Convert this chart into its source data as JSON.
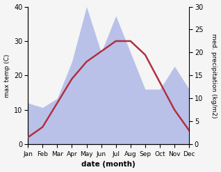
{
  "months": [
    "Jan",
    "Feb",
    "Mar",
    "Apr",
    "May",
    "Jun",
    "Jul",
    "Aug",
    "Sep",
    "Oct",
    "Nov",
    "Dec"
  ],
  "temperature": [
    2,
    5,
    12,
    19,
    24,
    27,
    30,
    30,
    26,
    18,
    10,
    4
  ],
  "precipitation": [
    9,
    8,
    10,
    18,
    30,
    20,
    28,
    20,
    12,
    12,
    17,
    12
  ],
  "temp_ylim": [
    0,
    40
  ],
  "precip_ylim": [
    0,
    30
  ],
  "temp_color": "#b03040",
  "precip_color_fill": "#b0b8e8",
  "background_color": "#f5f5f5",
  "xlabel": "date (month)",
  "ylabel_left": "max temp (C)",
  "ylabel_right": "med. precipitation (kg/m2)"
}
